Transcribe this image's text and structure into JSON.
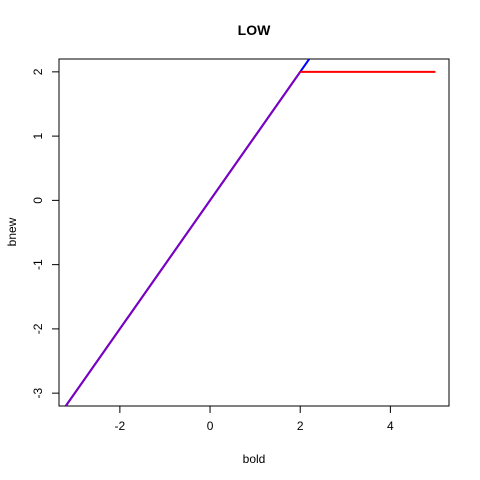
{
  "chart_data": {
    "type": "line",
    "title": "LOW",
    "xlabel": "bold",
    "ylabel": "bnew",
    "xlim": [
      -3.35,
      5.3
    ],
    "ylim": [
      -3.2,
      2.2
    ],
    "xticks": [
      -2,
      0,
      2,
      4
    ],
    "yticks": [
      -3,
      -2,
      -1,
      0,
      1,
      2
    ],
    "grid": false,
    "series": [
      {
        "color": "#0000ff",
        "x": [
          -3.2,
          2.2
        ],
        "y": [
          -3.2,
          2.2
        ]
      },
      {
        "color": "#7f00bf",
        "x": [
          -3.2,
          2.0
        ],
        "y": [
          -3.2,
          2.0
        ]
      },
      {
        "color": "#ff0000",
        "x": [
          2.0,
          5.0
        ],
        "y": [
          2.0,
          2.0
        ]
      }
    ]
  }
}
